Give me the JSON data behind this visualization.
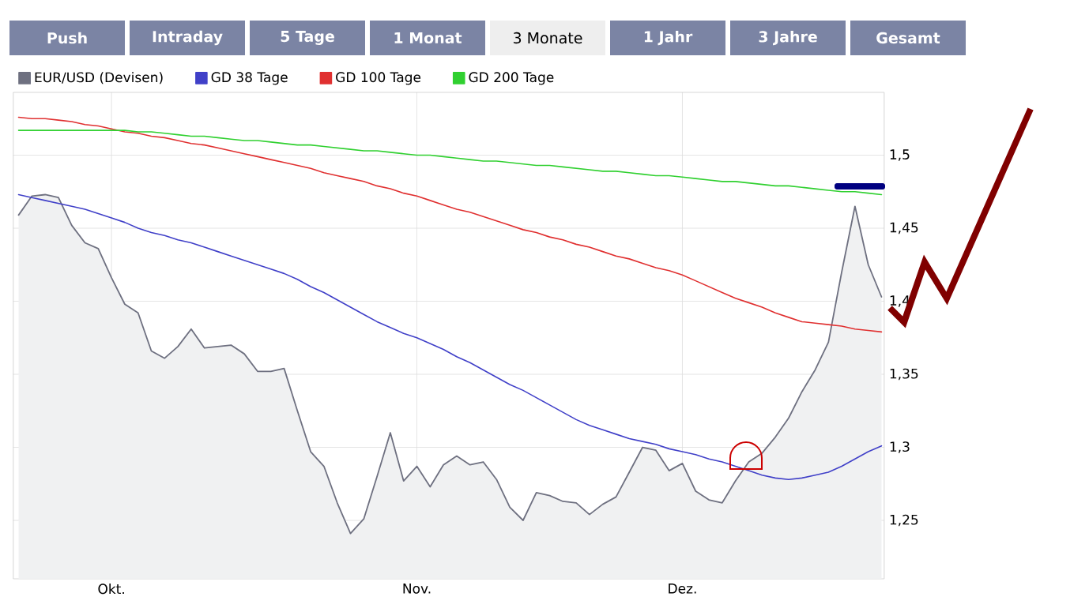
{
  "chart_data": {
    "type": "line",
    "annotations": [
      "Push",
      "Intraday",
      "5 Tage",
      "1 Monat",
      "3 Monate",
      "1 Jahr",
      "3 Jahre",
      "Gesamt"
    ],
    "categories": [
      null,
      null,
      null,
      null,
      null,
      null,
      null,
      "Okt.",
      null,
      null,
      null,
      null,
      null,
      null,
      null,
      null,
      null,
      null,
      null,
      null,
      null,
      null,
      null,
      null,
      null,
      null,
      null,
      null,
      null,
      null,
      "Nov.",
      null,
      null,
      null,
      null,
      null,
      null,
      null,
      null,
      null,
      null,
      null,
      null,
      null,
      null,
      null,
      null,
      null,
      null,
      null,
      "Dez.",
      null,
      null,
      null,
      null,
      null,
      null,
      null,
      null,
      null,
      null,
      null,
      null,
      null,
      null,
      null
    ],
    "series": [
      {
        "name": "EUR/USD (Devisen)",
        "type": "area",
        "color": "#6e7080",
        "values": [
          1.459,
          1.472,
          1.473,
          1.471,
          1.452,
          1.44,
          1.436,
          1.416,
          1.398,
          1.392,
          1.366,
          1.361,
          1.369,
          1.381,
          1.368,
          1.369,
          1.37,
          1.364,
          1.352,
          1.352,
          1.354,
          1.325,
          1.297,
          1.287,
          1.262,
          1.241,
          1.251,
          1.28,
          1.31,
          1.277,
          1.287,
          1.273,
          1.288,
          1.294,
          1.288,
          1.29,
          1.278,
          1.259,
          1.25,
          1.269,
          1.267,
          1.263,
          1.262,
          1.254,
          1.261,
          1.266,
          1.283,
          1.3,
          1.298,
          1.284,
          1.289,
          1.27,
          1.264,
          1.262,
          1.277,
          1.29,
          1.296,
          1.307,
          1.32,
          1.338,
          1.353,
          1.372,
          1.42,
          1.465,
          1.425,
          1.403
        ]
      },
      {
        "name": "GD 38 Tage",
        "color": "#4040c8",
        "values": [
          1.473,
          1.471,
          1.469,
          1.467,
          1.465,
          1.463,
          1.46,
          1.457,
          1.454,
          1.45,
          1.447,
          1.445,
          1.442,
          1.44,
          1.437,
          1.434,
          1.431,
          1.428,
          1.425,
          1.422,
          1.419,
          1.415,
          1.41,
          1.406,
          1.401,
          1.396,
          1.391,
          1.386,
          1.382,
          1.378,
          1.375,
          1.371,
          1.367,
          1.362,
          1.358,
          1.353,
          1.348,
          1.343,
          1.339,
          1.334,
          1.329,
          1.324,
          1.319,
          1.315,
          1.312,
          1.309,
          1.306,
          1.304,
          1.302,
          1.299,
          1.297,
          1.295,
          1.292,
          1.29,
          1.287,
          1.284,
          1.281,
          1.279,
          1.278,
          1.279,
          1.281,
          1.283,
          1.287,
          1.292,
          1.297,
          1.301
        ]
      },
      {
        "name": "GD 100 Tage",
        "color": "#e03030",
        "values": [
          1.526,
          1.525,
          1.525,
          1.524,
          1.523,
          1.521,
          1.52,
          1.518,
          1.516,
          1.515,
          1.513,
          1.512,
          1.51,
          1.508,
          1.507,
          1.505,
          1.503,
          1.501,
          1.499,
          1.497,
          1.495,
          1.493,
          1.491,
          1.488,
          1.486,
          1.484,
          1.482,
          1.479,
          1.477,
          1.474,
          1.472,
          1.469,
          1.466,
          1.463,
          1.461,
          1.458,
          1.455,
          1.452,
          1.449,
          1.447,
          1.444,
          1.442,
          1.439,
          1.437,
          1.434,
          1.431,
          1.429,
          1.426,
          1.423,
          1.421,
          1.418,
          1.414,
          1.41,
          1.406,
          1.402,
          1.399,
          1.396,
          1.392,
          1.389,
          1.386,
          1.385,
          1.384,
          1.383,
          1.381,
          1.38,
          1.379
        ]
      },
      {
        "name": "GD 200 Tage",
        "color": "#30d030",
        "values": [
          1.517,
          1.517,
          1.517,
          1.517,
          1.517,
          1.517,
          1.517,
          1.517,
          1.517,
          1.516,
          1.516,
          1.515,
          1.514,
          1.513,
          1.513,
          1.512,
          1.511,
          1.51,
          1.51,
          1.509,
          1.508,
          1.507,
          1.507,
          1.506,
          1.505,
          1.504,
          1.503,
          1.503,
          1.502,
          1.501,
          1.5,
          1.5,
          1.499,
          1.498,
          1.497,
          1.496,
          1.496,
          1.495,
          1.494,
          1.493,
          1.493,
          1.492,
          1.491,
          1.49,
          1.489,
          1.489,
          1.488,
          1.487,
          1.486,
          1.486,
          1.485,
          1.484,
          1.483,
          1.482,
          1.482,
          1.481,
          1.48,
          1.479,
          1.479,
          1.478,
          1.477,
          1.476,
          1.475,
          1.475,
          1.474,
          1.473
        ]
      }
    ],
    "ylim": [
      1.21,
      1.543
    ],
    "yticks": [
      {
        "value": 1.25,
        "label": "1,25"
      },
      {
        "value": 1.3,
        "label": "1,3"
      },
      {
        "value": 1.35,
        "label": "1,35"
      },
      {
        "value": 1.4,
        "label": "1,4"
      },
      {
        "value": 1.45,
        "label": "1,45"
      },
      {
        "value": 1.5,
        "label": "1,5"
      }
    ],
    "grid": true,
    "legend": "top",
    "marker": "none",
    "line_style": "solid"
  }
}
